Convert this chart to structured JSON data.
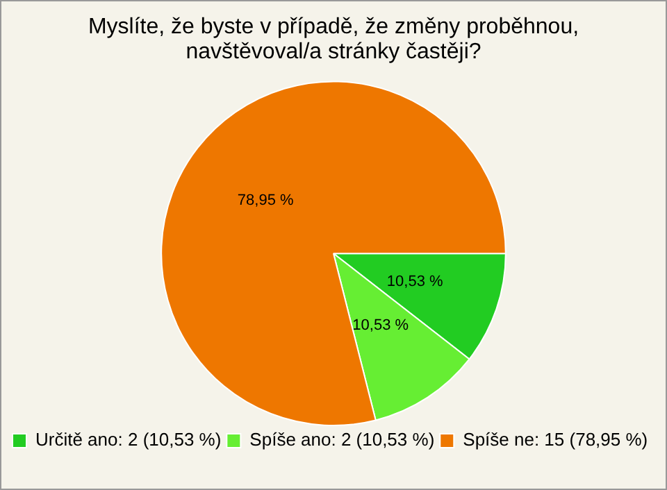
{
  "chart_data": {
    "type": "pie",
    "title": "Myslíte, že byste v případě, že změny proběhnou, navštěvoval/a stránky častěji?",
    "categories": [
      "Určitě ano: 2 (10,53 %)",
      "Spíše ano: 2 (10,53 %)",
      "Spíše ne: 15 (78,95 %)"
    ],
    "values": [
      10.53,
      10.53,
      78.95
    ],
    "colors": [
      "#22cc22",
      "#66ee33",
      "#ee7700"
    ],
    "value_labels": [
      "10,53 %",
      "10,53 %",
      "78,95 %"
    ],
    "legend": "bottom left"
  }
}
